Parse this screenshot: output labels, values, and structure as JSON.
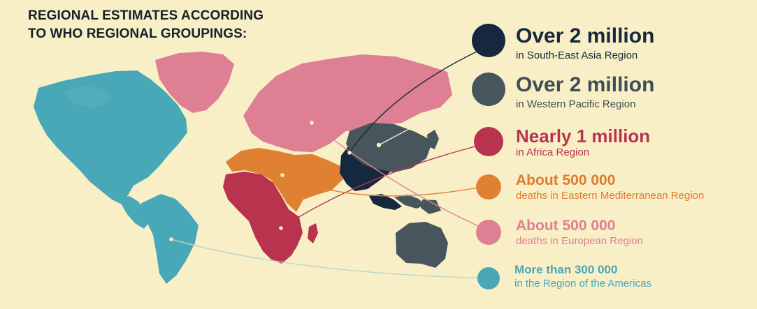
{
  "title": {
    "line1": "REGIONAL ESTIMATES ACCORDING",
    "line2": "TO WHO REGIONAL GROUPINGS:"
  },
  "colors": {
    "background": "#f8efc6",
    "south_east_asia": "#16283d",
    "western_pacific": "#47565d",
    "africa": "#b9334f",
    "eastern_mediterranean": "#e08032",
    "europe": "#de7f94",
    "americas": "#49a8b8",
    "title": "#16202a"
  },
  "regions": [
    {
      "id": "south-east-asia",
      "headline": "Over 2 million",
      "subtext": "in South-East Asia Region",
      "color": "#16283d",
      "text_color": "#16283d"
    },
    {
      "id": "western-pacific",
      "headline": "Over 2 million",
      "subtext": "in Western Pacific Region",
      "color": "#47565d",
      "text_color": "#3f4d55"
    },
    {
      "id": "africa",
      "headline": "Nearly 1 million",
      "subtext": "in Africa Region",
      "color": "#b9334f",
      "text_color": "#b9334f"
    },
    {
      "id": "eastern-mediterranean",
      "headline": "About 500 000",
      "subtext": "deaths in Eastern Mediterranean Region",
      "color": "#e08032",
      "text_color": "#e07a2d"
    },
    {
      "id": "europe",
      "headline": "About 500 000",
      "subtext": "deaths in European Region",
      "color": "#de7f94",
      "text_color": "#de7f94"
    },
    {
      "id": "americas",
      "headline": "More than 300 000",
      "subtext": "in the Region of the Americas",
      "color": "#49a8b8",
      "text_color": "#49a8b8"
    }
  ]
}
